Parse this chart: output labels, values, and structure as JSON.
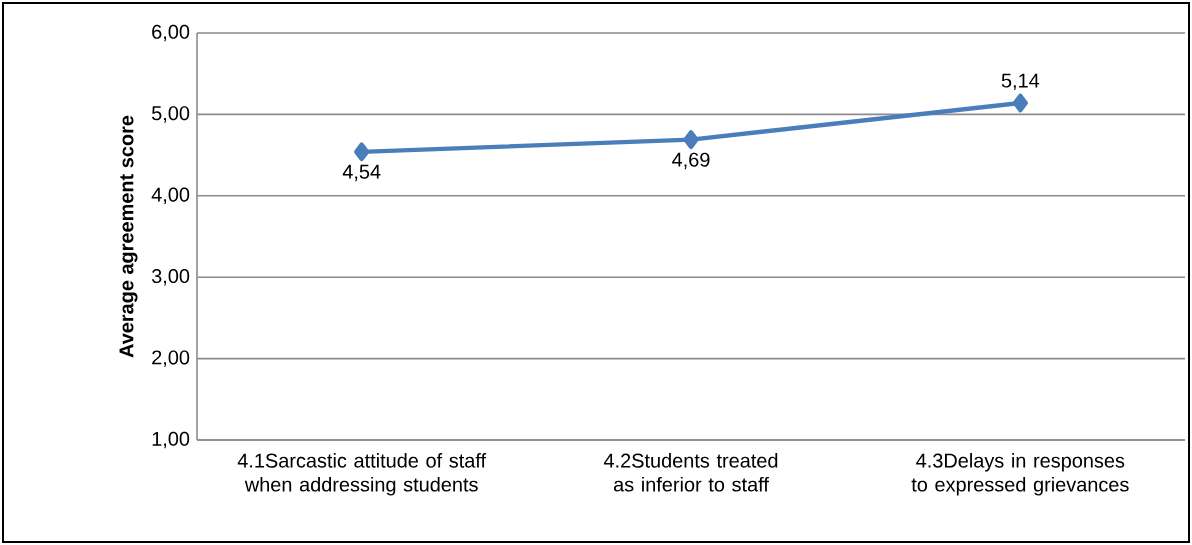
{
  "chart_data": {
    "type": "line",
    "ylabel": "Average agreement score",
    "categories": [
      "4.1Sarcastic attitude of staff when addressing students",
      "4.2Students treated as inferior to staff",
      "4.3Delays in responses to expressed grievances"
    ],
    "series": [
      {
        "color": "#4a7ebb",
        "values": [
          4.54,
          4.69,
          5.14
        ],
        "value_labels": [
          "4,54",
          "4,69",
          "5,14"
        ]
      }
    ],
    "ylim": [
      1,
      6
    ],
    "yticks": [
      {
        "value": 1,
        "label": "1,00"
      },
      {
        "value": 2,
        "label": "2,00"
      },
      {
        "value": 3,
        "label": "3,00"
      },
      {
        "value": 4,
        "label": "4,00"
      },
      {
        "value": 5,
        "label": "5,00"
      },
      {
        "value": 6,
        "label": "6,00"
      }
    ],
    "grid": "y",
    "marker": "diamond",
    "line_style": "solid"
  }
}
